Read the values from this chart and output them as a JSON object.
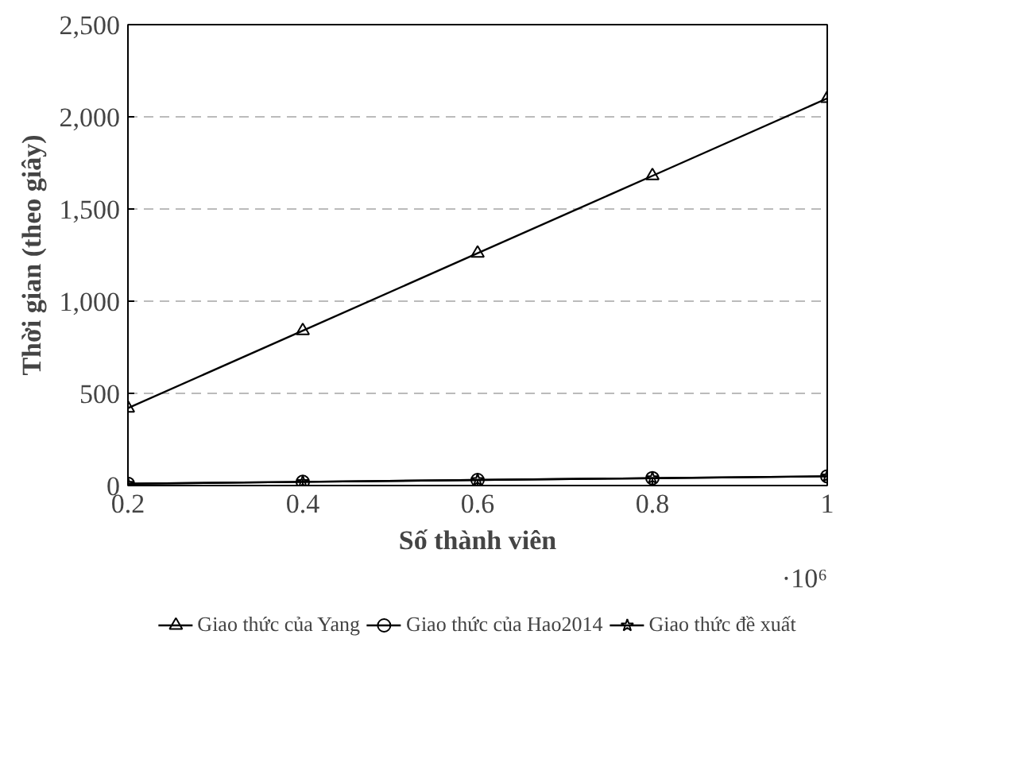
{
  "chart_data": {
    "type": "line",
    "xlabel": "Số thành viên",
    "ylabel": "Thời gian (theo giây)",
    "x": [
      0.2,
      0.4,
      0.6,
      0.8,
      1
    ],
    "series": [
      {
        "name": "Giao thức của Yang",
        "color": "#000000",
        "marker": "triangle",
        "values": [
          420,
          840,
          1260,
          1680,
          2100
        ]
      },
      {
        "name": "Giao thức của Hao2014",
        "color": "#000000",
        "marker": "circle",
        "values": [
          10,
          20,
          30,
          40,
          50
        ]
      },
      {
        "name": "Giao thức đề xuất",
        "color": "#000000",
        "marker": "star",
        "values": [
          10,
          20,
          30,
          40,
          50
        ]
      }
    ],
    "xlim": [
      0.2,
      1
    ],
    "ylim": [
      0,
      2500
    ],
    "xticks": [
      0.2,
      0.4,
      0.6,
      0.8,
      1
    ],
    "yticks": [
      0,
      500,
      {
        "value": 1000,
        "label": "1,000"
      },
      {
        "value": 1500,
        "label": "1,500"
      },
      {
        "value": 2000,
        "label": "2,000"
      },
      {
        "value": 2500,
        "label": "2,500"
      }
    ],
    "annotations": [
      "·10⁶"
    ],
    "grid": "y",
    "legend": "bottom",
    "line_style": "solid"
  }
}
